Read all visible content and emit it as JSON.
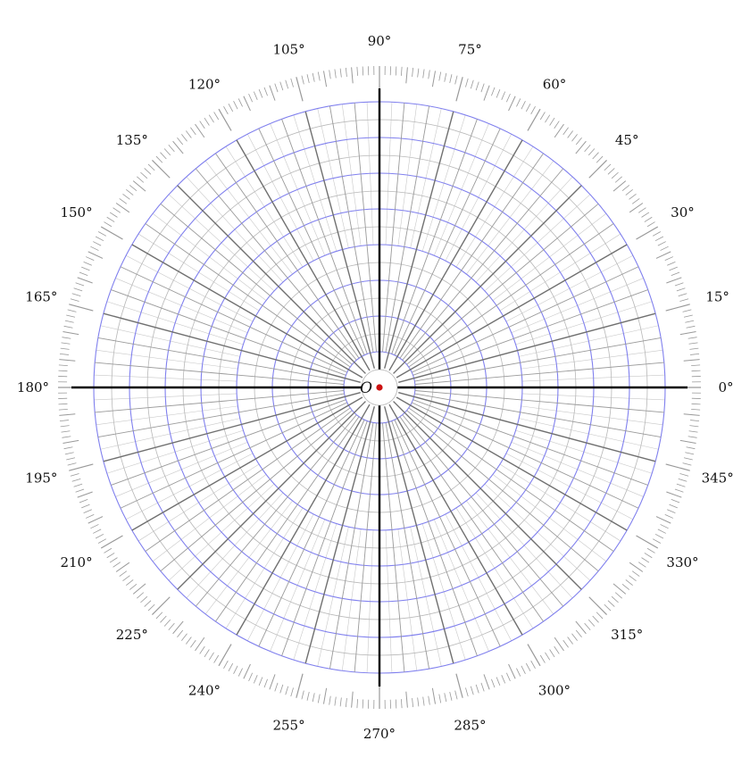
{
  "diagram": {
    "type": "polar-grid",
    "origin_label": "O",
    "angle_labels": [
      "0°",
      "15°",
      "30°",
      "45°",
      "60°",
      "75°",
      "90°",
      "105°",
      "120°",
      "135°",
      "150°",
      "165°",
      "180°",
      "195°",
      "210°",
      "225°",
      "240°",
      "255°",
      "270°",
      "285°",
      "300°",
      "315°",
      "330°",
      "345°"
    ],
    "angle_values": [
      0,
      15,
      30,
      45,
      60,
      75,
      90,
      105,
      120,
      135,
      150,
      165,
      180,
      195,
      210,
      225,
      240,
      255,
      270,
      285,
      300,
      315,
      330,
      345
    ],
    "angle_major_step": 15,
    "angle_mid_step": 5,
    "angle_minor_step": 1,
    "ring_count": 16,
    "major_ring_every": 2,
    "colors": {
      "axis": "#000000",
      "major_ring": "#8080ee",
      "minor_ring": "#b8b8b8",
      "major_ray": "#707070",
      "minor_ray": "#9a9a9a",
      "fine_ray": "#c8c8c8",
      "tick": "#999999",
      "origin_dot": "#cc1111"
    }
  }
}
